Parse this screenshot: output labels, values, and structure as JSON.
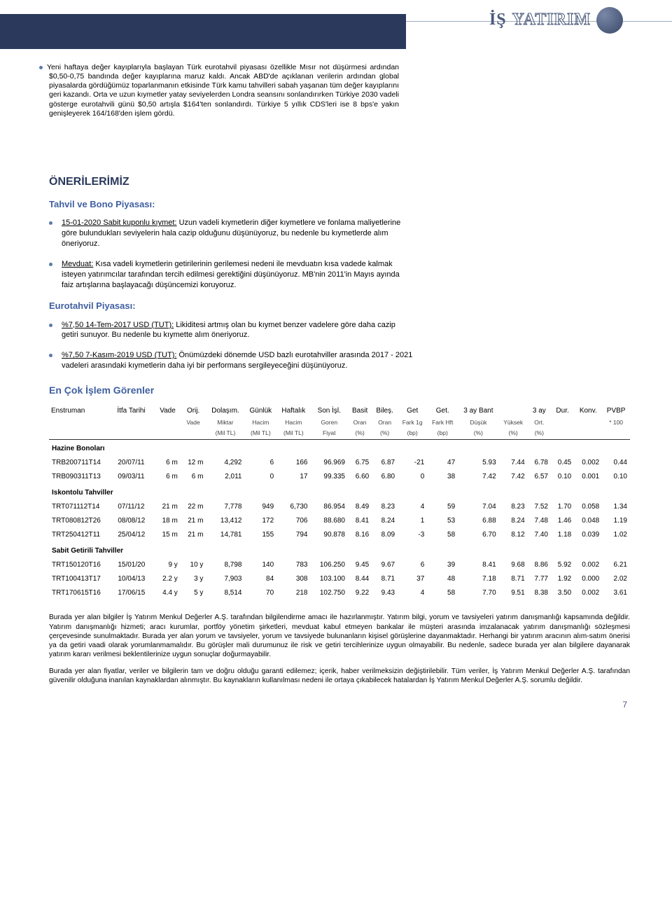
{
  "logo_text_a": "İŞ",
  "logo_text_b": "YATIRIM",
  "intro_paragraphs": [
    "Yeni haftaya değer kayıplarıyla başlayan Türk eurotahvil piyasası özellikle Mısır not düşürmesi ardından $0,50-0,75 bandında değer kayıplarına maruz kaldı. Ancak ABD'de açıklanan verilerin ardından global piyasalarda gördüğümüz toparlanmanın etkisinde Türk kamu tahvilleri sabah yaşanan tüm değer kayıplarını geri kazandı. Orta ve uzun kıymetler yatay seviyelerden Londra seansını sonlandırırken Türkiye 2030 vadeli gösterge eurotahvili günü $0,50 artışla $164'ten sonlandırdı. Türkiye 5 yıllık CDS'leri ise 8 bps'e yakın genişleyerek 164/168'den işlem gördü."
  ],
  "section_title": "ÖNERİLERİMİZ",
  "bond_section_title": "Tahvil ve Bono Piyasası:",
  "bond_items": [
    {
      "label": "15-01-2020 Sabit kuponlu kıymet:",
      "text": "Uzun vadeli kıymetlerin diğer kıymetlere ve fonlama maliyetlerine göre bulundukları seviyelerin hala cazip olduğunu düşünüyoruz, bu nedenle bu kıymetlerde alım öneriyoruz."
    },
    {
      "label": "Mevduat:",
      "text": "Kısa vadeli kıymetlerin getirilerinin gerilemesi nedeni ile mevduatın kısa vadede kalmak isteyen yatırımcılar tarafından tercih edilmesi gerektiğini düşünüyoruz. MB'nin 2011'in Mayıs ayında faiz artışlarına başlayacağı düşüncemizi koruyoruz."
    }
  ],
  "euro_section_title": "Eurotahvil Piyasası:",
  "euro_items": [
    {
      "label": "%7,50 14-Tem-2017 USD (TUT):",
      "text": "Likiditesi artmış olan bu kıymet benzer vadelere göre daha cazip getiri sunuyor. Bu nedenle bu kıymette alım öneriyoruz."
    },
    {
      "label": "%7,50 7-Kasım-2019 USD (TUT):",
      "text": "Önümüzdeki dönemde USD bazlı eurotahviller arasında 2017 - 2021 vadeleri arasındaki kıymetlerin daha iyi bir performans sergileyeceğini düşünüyoruz."
    }
  ],
  "table_title": "En Çok İşlem Görenler",
  "columns": [
    {
      "l1": "Enstruman",
      "l2": "",
      "align": "left"
    },
    {
      "l1": "İtfa Tarihi",
      "l2": "",
      "align": "left"
    },
    {
      "l1": "Vade",
      "l2": "",
      "align": "right"
    },
    {
      "l1": "Orij.",
      "l2": "Vade",
      "align": "right"
    },
    {
      "l1": "Dolaşım.",
      "l2": "Miktar",
      "l3": "(Mil TL)",
      "align": "right"
    },
    {
      "l1": "Günlük",
      "l2": "Hacim",
      "l3": "(Mil TL)",
      "align": "right"
    },
    {
      "l1": "Haftalık",
      "l2": "Hacim",
      "l3": "(Mil TL)",
      "align": "right"
    },
    {
      "l1": "Son İşl.",
      "l2": "Goren",
      "l3": "Fiyat",
      "align": "right"
    },
    {
      "l1": "Basit",
      "l2": "Oran",
      "l3": "(%)",
      "align": "right"
    },
    {
      "l1": "Bileş.",
      "l2": "Oran",
      "l3": "(%)",
      "align": "right"
    },
    {
      "l1": "Get",
      "l2": "Fark 1g",
      "l3": "(bp)",
      "align": "right"
    },
    {
      "l1": "Get.",
      "l2": "Fark Hft",
      "l3": "(bp)",
      "align": "right"
    },
    {
      "l1": "3 ay Bant",
      "l2": "Düşük",
      "l3": "(%)",
      "align": "right"
    },
    {
      "l1": "",
      "l2": "Yüksek",
      "l3": "(%)",
      "align": "right"
    },
    {
      "l1": "3 ay",
      "l2": "Ort.",
      "l3": "(%)",
      "align": "right"
    },
    {
      "l1": "Dur.",
      "l2": "",
      "align": "right"
    },
    {
      "l1": "Konv.",
      "l2": "",
      "align": "right"
    },
    {
      "l1": "PVBP",
      "l2": "* 100",
      "align": "right"
    }
  ],
  "groups": [
    {
      "name": "Hazine Bonoları",
      "rows": [
        [
          "TRB200711T14",
          "20/07/11",
          "6 m",
          "12 m",
          "4,292",
          "6",
          "166",
          "96.969",
          "6.75",
          "6.87",
          "-21",
          "47",
          "5.93",
          "7.44",
          "6.78",
          "0.45",
          "0.002",
          "0.44"
        ],
        [
          "TRB090311T13",
          "09/03/11",
          "6 m",
          "6 m",
          "2,011",
          "0",
          "17",
          "99.335",
          "6.60",
          "6.80",
          "0",
          "38",
          "7.42",
          "7.42",
          "6.57",
          "0.10",
          "0.001",
          "0.10"
        ]
      ]
    },
    {
      "name": "Iskontolu Tahviller",
      "rows": [
        [
          "TRT071112T14",
          "07/11/12",
          "21 m",
          "22 m",
          "7,778",
          "949",
          "6,730",
          "86.954",
          "8.49",
          "8.23",
          "4",
          "59",
          "7.04",
          "8.23",
          "7.52",
          "1.70",
          "0.058",
          "1.34"
        ],
        [
          "TRT080812T26",
          "08/08/12",
          "18 m",
          "21 m",
          "13,412",
          "172",
          "706",
          "88.680",
          "8.41",
          "8.24",
          "1",
          "53",
          "6.88",
          "8.24",
          "7.48",
          "1.46",
          "0.048",
          "1.19"
        ],
        [
          "TRT250412T11",
          "25/04/12",
          "15 m",
          "21 m",
          "14,781",
          "155",
          "794",
          "90.878",
          "8.16",
          "8.09",
          "-3",
          "58",
          "6.70",
          "8.12",
          "7.40",
          "1.18",
          "0.039",
          "1.02"
        ]
      ]
    },
    {
      "name": "Sabit Getirili Tahviller",
      "rows": [
        [
          "TRT150120T16",
          "15/01/20",
          "9 y",
          "10 y",
          "8,798",
          "140",
          "783",
          "106.250",
          "9.45",
          "9.67",
          "6",
          "39",
          "8.41",
          "9.68",
          "8.86",
          "5.92",
          "0.002",
          "6.21"
        ],
        [
          "TRT100413T17",
          "10/04/13",
          "2.2 y",
          "3 y",
          "7,903",
          "84",
          "308",
          "103.100",
          "8.44",
          "8.71",
          "37",
          "48",
          "7.18",
          "8.71",
          "7.77",
          "1.92",
          "0.000",
          "2.02"
        ],
        [
          "TRT170615T16",
          "17/06/15",
          "4.4 y",
          "5 y",
          "8,514",
          "70",
          "218",
          "102.750",
          "9.22",
          "9.43",
          "4",
          "58",
          "7.70",
          "9.51",
          "8.38",
          "3.50",
          "0.002",
          "3.61"
        ]
      ]
    }
  ],
  "disclaimer_p1": "Burada yer alan bilgiler İş Yatırım Menkul Değerler A.Ş. tarafından bilgilendirme amacı ile hazırlanmıştır. Yatırım bilgi, yorum ve tavsiyeleri yatırım danışmanlığı kapsamında değildir. Yatırım danışmanlığı hizmeti; aracı kurumlar, portföy yönetim şirketleri, mevduat kabul etmeyen bankalar ile müşteri arasında imzalanacak yatırım danışmanlığı sözleşmesi çerçevesinde sunulmaktadır. Burada yer alan yorum ve tavsiyeler, yorum ve tavsiyede bulunanların kişisel görüşlerine dayanmaktadır. Herhangi bir yatırım aracının alım-satım önerisi ya da getiri vaadi olarak yorumlanmamalıdır. Bu görüşler mali durumunuz ile risk ve getiri tercihlerinize uygun olmayabilir. Bu nedenle, sadece burada yer alan bilgilere dayanarak yatırım kararı verilmesi beklentilerinize uygun sonuçlar doğurmayabilir.",
  "disclaimer_p2": "Burada yer alan fiyatlar, veriler ve bilgilerin tam ve doğru olduğu garanti edilemez; içerik, haber verilmeksizin değiştirilebilir. Tüm veriler, İş Yatırım Menkul Değerler A.Ş. tarafından güvenilir olduğuna inanılan kaynaklardan alınmıştır. Bu kaynakların kullanılması nedeni ile ortaya çıkabilecek hatalardan İş Yatırım Menkul Değerler A.Ş. sorumlu değildir.",
  "page_number": "7"
}
